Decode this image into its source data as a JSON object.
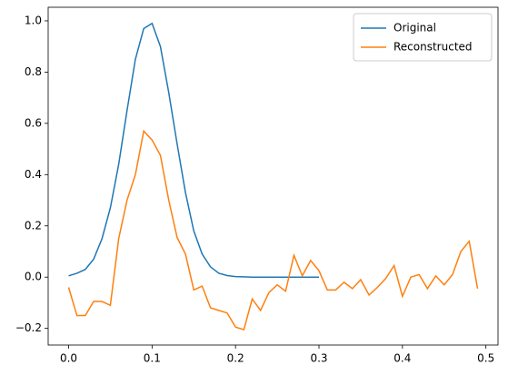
{
  "chart_data": {
    "type": "line",
    "series": [
      {
        "name": "Original",
        "color": "#1f77b4",
        "x": [
          0,
          0.01,
          0.02,
          0.03,
          0.04,
          0.05,
          0.06,
          0.07,
          0.08,
          0.09,
          0.1,
          0.11,
          0.12,
          0.13,
          0.14,
          0.15,
          0.16,
          0.17,
          0.18,
          0.19,
          0.2,
          0.21,
          0.22,
          0.23,
          0.24,
          0.25,
          0.26,
          0.27,
          0.28,
          0.29,
          0.3
        ],
        "values": [
          0.005,
          0.015,
          0.03,
          0.07,
          0.15,
          0.27,
          0.44,
          0.65,
          0.85,
          0.97,
          0.99,
          0.9,
          0.72,
          0.52,
          0.33,
          0.18,
          0.09,
          0.04,
          0.015,
          0.006,
          0.002,
          0.001,
          0,
          0,
          0,
          0,
          0,
          0,
          0,
          0,
          0
        ]
      },
      {
        "name": "Reconstructed",
        "color": "#ff7f0e",
        "x": [
          0,
          0.01,
          0.02,
          0.03,
          0.04,
          0.05,
          0.06,
          0.07,
          0.08,
          0.09,
          0.1,
          0.11,
          0.12,
          0.13,
          0.14,
          0.15,
          0.16,
          0.17,
          0.18,
          0.19,
          0.2,
          0.21,
          0.22,
          0.23,
          0.24,
          0.25,
          0.26,
          0.27,
          0.28,
          0.29,
          0.3,
          0.31,
          0.32,
          0.33,
          0.34,
          0.35,
          0.36,
          0.37,
          0.38,
          0.39,
          0.4,
          0.41,
          0.42,
          0.43,
          0.44,
          0.45,
          0.46,
          0.47,
          0.48,
          0.49
        ],
        "values": [
          -0.04,
          -0.15,
          -0.15,
          -0.095,
          -0.095,
          -0.11,
          0.15,
          0.3,
          0.4,
          0.57,
          0.535,
          0.475,
          0.3,
          0.155,
          0.09,
          -0.05,
          -0.035,
          -0.12,
          -0.13,
          -0.14,
          -0.195,
          -0.205,
          -0.085,
          -0.13,
          -0.06,
          -0.03,
          -0.055,
          0.085,
          0.005,
          0.065,
          0.025,
          -0.05,
          -0.05,
          -0.02,
          -0.045,
          -0.01,
          -0.07,
          -0.04,
          -0.005,
          0.045,
          -0.075,
          0,
          0.01,
          -0.045,
          0.005,
          -0.03,
          0.01,
          0.1,
          0.14,
          -0.045
        ]
      }
    ],
    "xlim": [
      -0.0245,
      0.5145
    ],
    "ylim": [
      -0.265,
      1.053
    ],
    "xticks": [
      {
        "value": 0,
        "label": "0.0"
      },
      {
        "value": 0.1,
        "label": "0.1"
      },
      {
        "value": 0.2,
        "label": "0.2"
      },
      {
        "value": 0.3,
        "label": "0.3"
      },
      {
        "value": 0.4,
        "label": "0.4"
      },
      {
        "value": 0.5,
        "label": "0.5"
      }
    ],
    "yticks": [
      {
        "value": -0.2,
        "label": "−0.2"
      },
      {
        "value": 0,
        "label": "0.0"
      },
      {
        "value": 0.2,
        "label": "0.2"
      },
      {
        "value": 0.4,
        "label": "0.4"
      },
      {
        "value": 0.6,
        "label": "0.6"
      },
      {
        "value": 0.8,
        "label": "0.8"
      },
      {
        "value": 1,
        "label": "1.0"
      }
    ],
    "grid": false,
    "legend": "upper right"
  }
}
